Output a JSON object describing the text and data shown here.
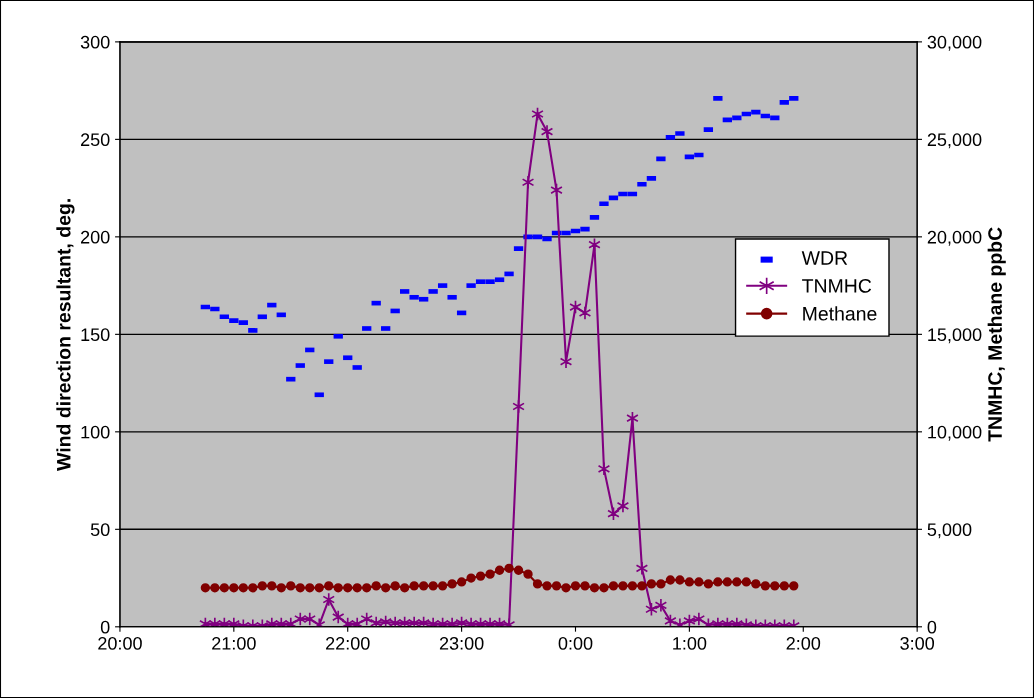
{
  "chart_data": {
    "type": "line",
    "ylabel": "Wind direction resultant, deg.",
    "y2label": "TNMHC, Methane ppbC",
    "x": [
      "2000-01-01T20:45",
      "2000-01-01T20:50",
      "2000-01-01T20:55",
      "2000-01-01T21:00",
      "2000-01-01T21:05",
      "2000-01-01T21:10",
      "2000-01-01T21:15",
      "2000-01-01T21:20",
      "2000-01-01T21:25",
      "2000-01-01T21:30",
      "2000-01-01T21:35",
      "2000-01-01T21:40",
      "2000-01-01T21:45",
      "2000-01-01T21:50",
      "2000-01-01T21:55",
      "2000-01-01T22:00",
      "2000-01-01T22:05",
      "2000-01-01T22:10",
      "2000-01-01T22:15",
      "2000-01-01T22:20",
      "2000-01-01T22:25",
      "2000-01-01T22:30",
      "2000-01-01T22:35",
      "2000-01-01T22:40",
      "2000-01-01T22:45",
      "2000-01-01T22:50",
      "2000-01-01T22:55",
      "2000-01-01T23:00",
      "2000-01-01T23:05",
      "2000-01-01T23:10",
      "2000-01-01T23:15",
      "2000-01-01T23:20",
      "2000-01-01T23:25",
      "2000-01-01T23:30",
      "2000-01-01T23:35",
      "2000-01-01T23:40",
      "2000-01-01T23:45",
      "2000-01-01T23:50",
      "2000-01-01T23:55",
      "2000-01-02T00:00",
      "2000-01-02T00:05",
      "2000-01-02T00:10",
      "2000-01-02T00:15",
      "2000-01-02T00:20",
      "2000-01-02T00:25",
      "2000-01-02T00:30",
      "2000-01-02T00:35",
      "2000-01-02T00:40",
      "2000-01-02T00:45",
      "2000-01-02T00:50",
      "2000-01-02T00:55",
      "2000-01-02T01:00",
      "2000-01-02T01:05",
      "2000-01-02T01:10",
      "2000-01-02T01:15",
      "2000-01-02T01:20",
      "2000-01-02T01:25",
      "2000-01-02T01:30",
      "2000-01-02T01:35",
      "2000-01-02T01:40",
      "2000-01-02T01:45",
      "2000-01-02T01:50",
      "2000-01-02T01:55"
    ],
    "series": [
      {
        "name": "WDR",
        "type": "scatter",
        "color": "#0000ff",
        "values": [
          164,
          163,
          159,
          157,
          156,
          152,
          159,
          165,
          160,
          127,
          134,
          142,
          119,
          136,
          149,
          138,
          133,
          153,
          166,
          153,
          162,
          172,
          169,
          168,
          172,
          175,
          169,
          161,
          175,
          177,
          177,
          178,
          181,
          194,
          200,
          200,
          199,
          202,
          202,
          203,
          204,
          210,
          217,
          220,
          222,
          222,
          227,
          230,
          240,
          251,
          253,
          241,
          242,
          255,
          271,
          260,
          261,
          263,
          264,
          262,
          261,
          269,
          271
        ]
      },
      {
        "name": "TNMHC",
        "axis": "y2",
        "color": "#800080",
        "marker": "cross",
        "values": [
          150,
          150,
          150,
          150,
          50,
          50,
          50,
          150,
          150,
          150,
          400,
          400,
          100,
          1400,
          500,
          150,
          150,
          400,
          200,
          250,
          200,
          200,
          200,
          200,
          150,
          150,
          150,
          200,
          150,
          150,
          150,
          150,
          100,
          11300,
          22800,
          26300,
          25400,
          22400,
          13600,
          16400,
          16100,
          19600,
          8100,
          5800,
          6200,
          10700,
          3000,
          900,
          1100,
          300,
          100,
          300,
          400,
          100,
          150,
          150,
          150,
          100,
          50,
          50,
          50,
          50,
          50
        ]
      },
      {
        "name": "Methane",
        "axis": "y2",
        "color": "#800000",
        "marker": "circle",
        "values": [
          2000,
          2000,
          2000,
          2000,
          2000,
          2000,
          2100,
          2100,
          2000,
          2100,
          2000,
          2000,
          2000,
          2100,
          2000,
          2000,
          2000,
          2000,
          2100,
          2000,
          2100,
          2000,
          2100,
          2100,
          2100,
          2100,
          2200,
          2300,
          2500,
          2600,
          2700,
          2900,
          3000,
          2900,
          2700,
          2200,
          2100,
          2100,
          2000,
          2100,
          2100,
          2000,
          2000,
          2100,
          2100,
          2100,
          2100,
          2200,
          2200,
          2400,
          2400,
          2300,
          2300,
          2200,
          2300,
          2300,
          2300,
          2300,
          2200,
          2100,
          2100,
          2100,
          2100
        ]
      }
    ],
    "xlim": [
      "2000-01-01T20:00",
      "2000-01-02T03:00"
    ],
    "xticks": [
      {
        "value": "2000-01-01T20:00",
        "label": "20:00"
      },
      {
        "value": "2000-01-01T21:00",
        "label": "21:00"
      },
      {
        "value": "2000-01-01T22:00",
        "label": "22:00"
      },
      {
        "value": "2000-01-01T23:00",
        "label": "23:00"
      },
      {
        "value": "2000-01-02T00:00",
        "label": "0:00"
      },
      {
        "value": "2000-01-02T01:00",
        "label": "1:00"
      },
      {
        "value": "2000-01-02T02:00",
        "label": "2:00"
      },
      {
        "value": "2000-01-02T03:00",
        "label": "3:00"
      }
    ],
    "ylim": [
      0,
      300
    ],
    "yticks": [
      0,
      50,
      100,
      150,
      200,
      250,
      300
    ],
    "y2lim": [
      0,
      30000
    ],
    "y2ticks": [
      0,
      {
        "value": 5000,
        "label": "5,000"
      },
      {
        "value": 10000,
        "label": "10,000"
      },
      {
        "value": 15000,
        "label": "15,000"
      },
      {
        "value": 20000,
        "label": "20,000"
      },
      {
        "value": 25000,
        "label": "25,000"
      },
      {
        "value": 30000,
        "label": "30,000"
      }
    ],
    "grid": "y",
    "legend": "right"
  }
}
